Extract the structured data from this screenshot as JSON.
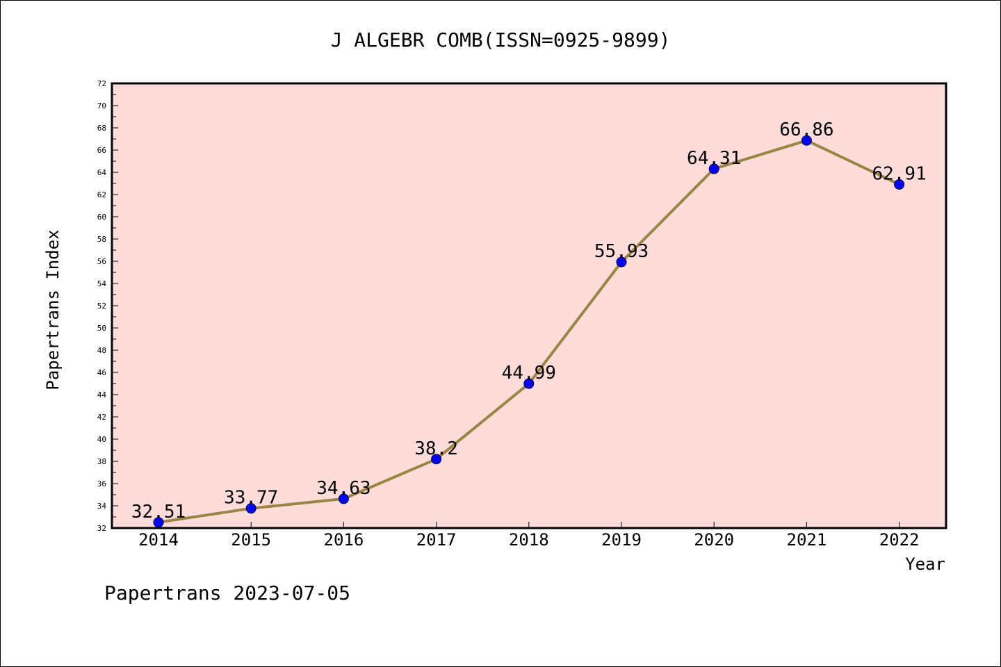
{
  "chart_data": {
    "type": "line",
    "title": "J ALGEBR COMB(ISSN=0925-9899)",
    "xlabel": "Year",
    "ylabel": "Papertrans Index",
    "x": [
      "2014",
      "2015",
      "2016",
      "2017",
      "2018",
      "2019",
      "2020",
      "2021",
      "2022"
    ],
    "values": [
      32.51,
      33.77,
      34.63,
      38.2,
      44.99,
      55.93,
      64.31,
      66.86,
      62.91
    ],
    "data_labels": [
      "32.51",
      "33.77",
      "34.63",
      "38.2",
      "44.99",
      "55.93",
      "64.31",
      "66.86",
      "62.91"
    ],
    "ylim": [
      32,
      72
    ],
    "y_tick_step": 2,
    "grid": false,
    "legend": "none",
    "colors": {
      "plot_background": "#fddcda",
      "line": "#9b8540",
      "marker": "#0000ff"
    }
  },
  "footer": {
    "text": "Papertrans 2023-07-05"
  }
}
